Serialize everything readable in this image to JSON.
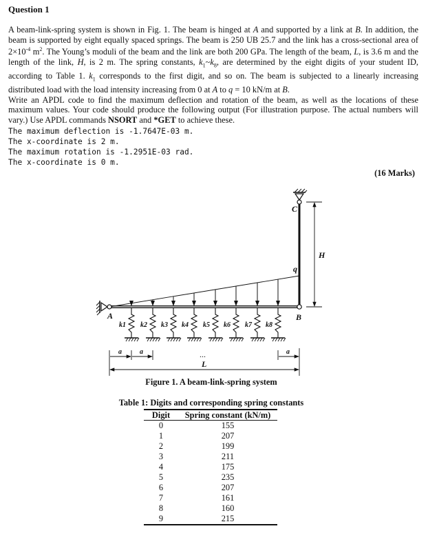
{
  "question_title": "Question 1",
  "paragraph": [
    {
      "t": "A beam-link-spring system is shown in Fig. 1.  The beam is hinged at "
    },
    {
      "t": "A",
      "i": true
    },
    {
      "t": " and supported by a link at "
    },
    {
      "t": "B",
      "i": true
    },
    {
      "t": ".  In addition, the beam is supported by eight equally spaced springs.  The beam is 250 UB 25.7 and the link has a cross-sectional area of 2×10"
    },
    {
      "t": "-4",
      "sup": true
    },
    {
      "t": " m"
    },
    {
      "t": "2",
      "sup": true
    },
    {
      "t": ".  The Young’s moduli of the beam and the link are both 200 GPa.  The length of the beam, "
    },
    {
      "t": "L",
      "i": true
    },
    {
      "t": ", is 3.6 m and the length of the link, "
    },
    {
      "t": "H",
      "i": true
    },
    {
      "t": ", is 2 m.  The spring constants, "
    },
    {
      "t": "k",
      "i": true
    },
    {
      "t": "1",
      "sub": true
    },
    {
      "t": "~"
    },
    {
      "t": "k",
      "i": true
    },
    {
      "t": "8",
      "sub": true
    },
    {
      "t": ", are determined by the eight digits of your student ID, according to Table 1.  "
    },
    {
      "t": "k",
      "i": true
    },
    {
      "t": "1",
      "sub": true
    },
    {
      "t": " corresponds to the first digit, and so on.  The beam is subjected to a linearly increasing distributed load with the load intensity increasing from 0 at "
    },
    {
      "t": "A",
      "i": true
    },
    {
      "t": " to "
    },
    {
      "t": "q",
      "i": true
    },
    {
      "t": " = 10 kN/m at "
    },
    {
      "t": "B",
      "i": true
    },
    {
      "t": "."
    },
    {
      "br": true
    },
    {
      "t": "Write an APDL code to find the maximum deflection and rotation of the beam, as well as the locations of these maximum values.  Your code should produce the following output (For illustration purpose.  The actual numbers will vary.)  Use APDL commands "
    },
    {
      "t": "NSORT",
      "b": true
    },
    {
      "t": " and "
    },
    {
      "t": "*GET",
      "b": true
    },
    {
      "t": " to achieve these."
    }
  ],
  "output_lines": [
    "The maximum deflection is -1.7647E-03 m.",
    "The x-coordinate is 2 m.",
    "The maximum rotation is -1.2951E-03 rad.",
    "The x-coordinate is 0 m."
  ],
  "marks": "(16 Marks)",
  "figure": {
    "labels": {
      "A": "A",
      "B": "B",
      "C": "C",
      "q": "q",
      "H": "H",
      "L": "L",
      "a": "a",
      "dots": "..."
    },
    "springs": [
      "k1",
      "k2",
      "k3",
      "k4",
      "k5",
      "k6",
      "k7",
      "k8"
    ],
    "caption": "Figure 1. A beam-link-spring system"
  },
  "table": {
    "title": "Table 1: Digits and corresponding spring constants",
    "headers": [
      "Digit",
      "Spring constant (kN/m)"
    ],
    "rows": [
      [
        "0",
        "155"
      ],
      [
        "1",
        "207"
      ],
      [
        "2",
        "199"
      ],
      [
        "3",
        "211"
      ],
      [
        "4",
        "175"
      ],
      [
        "5",
        "235"
      ],
      [
        "6",
        "207"
      ],
      [
        "7",
        "161"
      ],
      [
        "8",
        "160"
      ],
      [
        "9",
        "215"
      ]
    ]
  }
}
